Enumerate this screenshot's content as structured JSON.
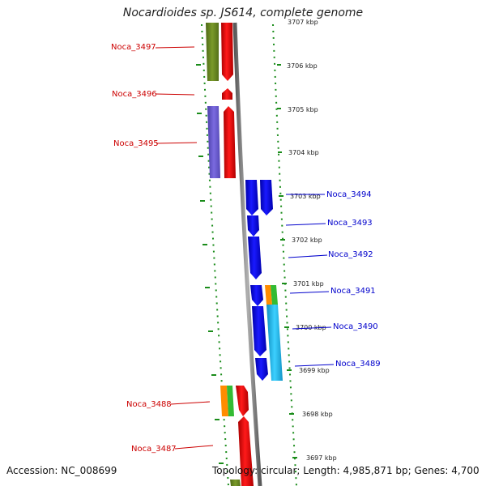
{
  "title": "Nocardioides sp. JS614, complete genome",
  "footer": {
    "accession": "Accession: NC_008699",
    "topology": "Topology: circular; Length: 4,985,871 bp; Genes: 4,700"
  },
  "colors": {
    "label_minus": "#cc0000",
    "label_plus": "#0000cc",
    "backbone": "#808080",
    "tick_dots": "#1a8c1a",
    "orf_red": "#ee0000",
    "orf_olive": "#6b8e23",
    "orf_purple": "#6a5acd",
    "orf_blue": "#0000ee",
    "orf_cyan": "#1eb8f0",
    "orf_orange": "#ff8c00",
    "orf_green": "#33bb33"
  },
  "scale_labels": [
    "3707 kbp",
    "3706 kbp",
    "3705 kbp",
    "3704 kbp",
    "3703 kbp",
    "3702 kbp",
    "3701 kbp",
    "3700 kbp",
    "3699 kbp",
    "3698 kbp",
    "3697 kbp"
  ],
  "genes_left": [
    "Noca_3497",
    "Noca_3496",
    "Noca_3495",
    "Noca_3488",
    "Noca_3487"
  ],
  "genes_right": [
    "Noca_3494",
    "Noca_3493",
    "Noca_3492",
    "Noca_3491",
    "Noca_3490",
    "Noca_3489"
  ]
}
